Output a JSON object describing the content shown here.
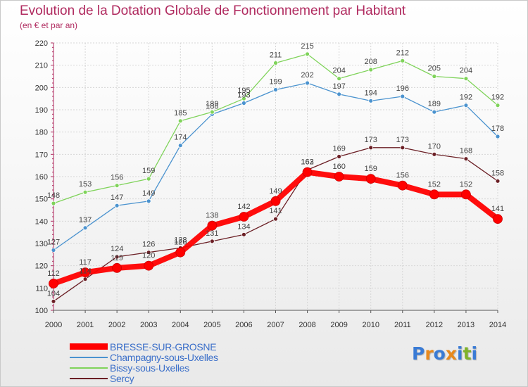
{
  "header": {
    "title": "Evolution de la Dotation Globale de Fonctionnement par Habitant",
    "subtitle": "(en € et par an)"
  },
  "colors": {
    "title": "#b02a5f",
    "legend_text": "#3b6fc9"
  },
  "logo": {
    "text": "Proxiti",
    "letter_colors": [
      "#3a7bd5",
      "#e8891c",
      "#3a7bd5",
      "#e8891c",
      "#3a7bd5",
      "#7fb32a",
      "#3a7bd5"
    ]
  },
  "chart_data": {
    "type": "line",
    "title": "Evolution de la Dotation Globale de Fonctionnement par Habitant",
    "subtitle": "(en € et par an)",
    "xlabel": "",
    "ylabel": "",
    "x": [
      "2000",
      "2001",
      "2002",
      "2003",
      "2004",
      "2005",
      "2006",
      "2007",
      "2008",
      "2009",
      "2010",
      "2011",
      "2012",
      "2013",
      "2014"
    ],
    "ylim": [
      100,
      220
    ],
    "yticks": [
      100,
      110,
      120,
      130,
      140,
      150,
      160,
      170,
      180,
      190,
      200,
      210,
      220
    ],
    "grid": true,
    "legend": "bottom-left",
    "series": [
      {
        "name": "Sercy",
        "color": "#6b1f25",
        "values": [
          104,
          114,
          124,
          126,
          128,
          131,
          134,
          141,
          163,
          169,
          173,
          173,
          170,
          168,
          158
        ]
      },
      {
        "name": "Champagny-sous-Uxelles",
        "color": "#4b93cf",
        "values": [
          127,
          137,
          147,
          149,
          174,
          188,
          193,
          199,
          202,
          197,
          194,
          196,
          189,
          192,
          178
        ]
      },
      {
        "name": "Bissy-sous-Uxelles",
        "color": "#7fd35a",
        "values": [
          148,
          153,
          156,
          159,
          185,
          189,
          195,
          211,
          215,
          204,
          208,
          212,
          205,
          204,
          192
        ]
      },
      {
        "name": "BRESSE-SUR-GROSNE",
        "color": "#ff0000",
        "values": [
          112,
          117,
          119,
          120,
          126,
          138,
          142,
          149,
          162,
          160,
          159,
          156,
          152,
          152,
          141
        ]
      }
    ],
    "legend_order": [
      "BRESSE-SUR-GROSNE",
      "Champagny-sous-Uxelles",
      "Bissy-sous-Uxelles",
      "Sercy"
    ]
  }
}
